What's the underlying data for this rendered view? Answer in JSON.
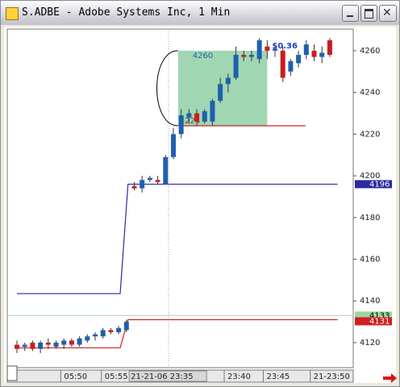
{
  "window": {
    "title": "S.ADBE - Adobe Systems Inc, 1 Min"
  },
  "chart_data": {
    "type": "candlestick",
    "x": [
      0,
      1,
      2,
      3,
      4,
      5,
      6,
      7,
      8,
      9,
      10,
      11,
      12,
      13,
      14,
      15,
      16,
      17,
      18,
      19,
      20,
      21,
      22,
      23,
      24,
      25,
      26,
      27,
      28,
      29,
      30,
      31,
      32,
      33,
      34,
      35,
      36,
      37,
      38,
      39,
      40
    ],
    "open": [
      4119,
      4118,
      4120,
      4117,
      4120,
      4118,
      4119,
      4121,
      4119,
      4121,
      4123,
      4123,
      4126,
      4125,
      4126,
      4195,
      4194,
      4198,
      4198,
      4196,
      4209,
      4220,
      4228,
      4230,
      4226,
      4226,
      4236,
      4244,
      4247,
      4258,
      4257,
      4256,
      4262,
      4260,
      4260,
      4250,
      4254,
      4258,
      4260,
      4257,
      4265
    ],
    "high": [
      4121,
      4120,
      4121,
      4121,
      4122,
      4121,
      4122,
      4122,
      4123,
      4124,
      4125,
      4127,
      4127,
      4128,
      4131,
      4197,
      4200,
      4200,
      4200,
      4210,
      4223,
      4232,
      4232,
      4232,
      4232,
      4237,
      4247,
      4249,
      4262,
      4260,
      4260,
      4266,
      4265,
      4262,
      4262,
      4256,
      4260,
      4265,
      4263,
      4262,
      4266
    ],
    "low": [
      4115,
      4116,
      4116,
      4115,
      4117,
      4117,
      4117,
      4118,
      4118,
      4120,
      4121,
      4122,
      4124,
      4124,
      4125,
      4193,
      4192,
      4197,
      4196,
      4196,
      4208,
      4218,
      4225,
      4224,
      4225,
      4224,
      4235,
      4240,
      4246,
      4255,
      4255,
      4254,
      4256,
      4257,
      4245,
      4248,
      4252,
      4256,
      4255,
      4254,
      4257
    ],
    "close": [
      4117,
      4119,
      4117,
      4120,
      4119,
      4120,
      4121,
      4119,
      4122,
      4123,
      4124,
      4126,
      4125,
      4127,
      4130,
      4194,
      4198,
      4199,
      4197,
      4209,
      4220,
      4229,
      4230,
      4226,
      4231,
      4236,
      4244,
      4247,
      4258,
      4257,
      4258,
      4265,
      4260,
      4261,
      4247,
      4255,
      4258,
      4263,
      4257,
      4259,
      4258
    ],
    "up_color": "#1f5fb0",
    "down_color": "#c81e1e",
    "lines": [
      {
        "color": "#2a2aa0",
        "x": [
          0,
          13.2,
          14.2,
          41
        ],
        "values": [
          4143.5,
          4143.5,
          4196,
          4196
        ]
      },
      {
        "color": "#d02020",
        "x": [
          0,
          13.2,
          14.2,
          41
        ],
        "values": [
          4117.5,
          4117.5,
          4131,
          4131
        ]
      },
      {
        "color": "#d02020",
        "x": [
          20.6,
          36.9
        ],
        "values": [
          4224,
          4224
        ]
      },
      {
        "color": "#b8dcb8",
        "x": [
          -1.24,
          43
        ],
        "values": [
          4133,
          4133
        ]
      }
    ],
    "measure": {
      "x": [
        20.6,
        32
      ],
      "high": 4260,
      "low": 4224,
      "change_label": "$0.36",
      "color": "#8fd0a4"
    },
    "price_markers": [
      {
        "value": 4196,
        "color": "#2a2aa0"
      },
      {
        "value": 4133,
        "color": "#9ed79e"
      },
      {
        "value": 4131,
        "color": "#d02020"
      }
    ],
    "xlim": [
      -1.24,
      43
    ],
    "ylim": [
      4108,
      4270.4
    ],
    "yticks": [
      4120,
      4140,
      4160,
      4180,
      4200,
      4220,
      4240,
      4260
    ],
    "xticks": [
      {
        "value": 5.6,
        "label": "05:50"
      },
      {
        "value": 10.8,
        "label": "05:55"
      },
      {
        "value": 19.3,
        "label": "21-21-06 23:35"
      },
      {
        "value": 26.5,
        "label": "23:40"
      },
      {
        "value": 31.5,
        "label": "23:45"
      },
      {
        "value": 37.5,
        "label": "21-23:50"
      }
    ]
  }
}
